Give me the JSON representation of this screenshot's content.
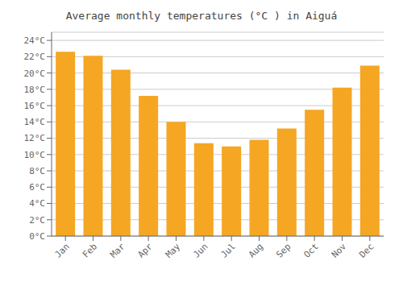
{
  "chart_data": {
    "type": "bar",
    "title": "Average monthly temperatures (°C ) in Aiguá",
    "categories": [
      "Jan",
      "Feb",
      "Mar",
      "Apr",
      "May",
      "Jun",
      "Jul",
      "Aug",
      "Sep",
      "Oct",
      "Nov",
      "Dec"
    ],
    "values": [
      22.6,
      22.1,
      20.4,
      17.2,
      14.0,
      11.4,
      11.0,
      11.8,
      13.2,
      15.5,
      18.2,
      20.9
    ],
    "color": "#F5A623",
    "ylim": [
      0,
      25
    ],
    "yticks": [
      {
        "value": 0,
        "label": "0°C"
      },
      {
        "value": 2,
        "label": "2°C"
      },
      {
        "value": 4,
        "label": "4°C"
      },
      {
        "value": 6,
        "label": "6°C"
      },
      {
        "value": 8,
        "label": "8°C"
      },
      {
        "value": 10,
        "label": "10°C"
      },
      {
        "value": 12,
        "label": "12°C"
      },
      {
        "value": 14,
        "label": "14°C"
      },
      {
        "value": 16,
        "label": "16°C"
      },
      {
        "value": 18,
        "label": "18°C"
      },
      {
        "value": 20,
        "label": "20°C"
      },
      {
        "value": 22,
        "label": "22°C"
      },
      {
        "value": 24,
        "label": "24°C"
      }
    ],
    "grid": true
  }
}
